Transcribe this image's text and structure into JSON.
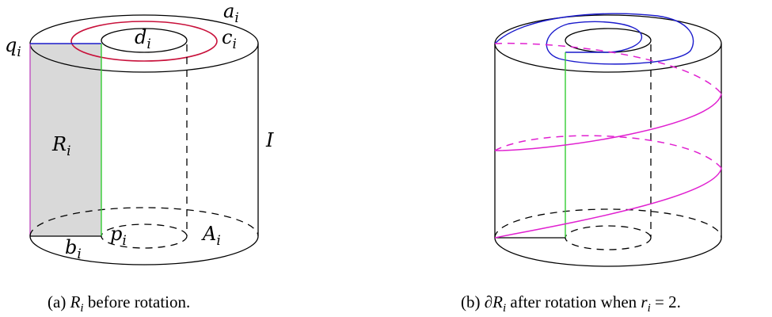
{
  "figure_a": {
    "labels": {
      "a": {
        "base": "a",
        "sub": "i"
      },
      "q": {
        "base": "q",
        "sub": "i"
      },
      "d": {
        "base": "d",
        "sub": "i"
      },
      "c": {
        "base": "c",
        "sub": "i"
      },
      "R": {
        "base": "R",
        "sub": "i"
      },
      "I": {
        "base": "I"
      },
      "b": {
        "base": "b",
        "sub": "i"
      },
      "p": {
        "base": "p",
        "sub": "i"
      },
      "A": {
        "base": "A",
        "sub": "i"
      }
    },
    "caption": {
      "prefix": "(a) ",
      "math_base": "R",
      "math_sub": "i",
      "rest": " before rotation."
    }
  },
  "figure_b": {
    "caption": {
      "prefix": "(b) ∂",
      "math_base": "R",
      "math_sub": "i",
      "mid": " after rotation when ",
      "math2_base": "r",
      "math2_sub": "i",
      "rest": " = 2."
    }
  },
  "colors": {
    "red_curve": "#c8103a",
    "blue_curve": "#1a1acc",
    "green_line": "#33cc33",
    "magenta_curve": "#e020d0",
    "region_fill": "#d9d9d9"
  }
}
